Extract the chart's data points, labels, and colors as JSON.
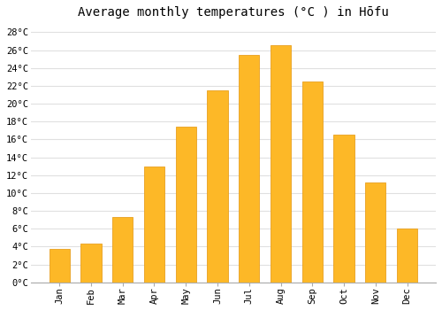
{
  "title": "Average monthly temperatures (°C ) in Hōfu",
  "months": [
    "Jan",
    "Feb",
    "Mar",
    "Apr",
    "May",
    "Jun",
    "Jul",
    "Aug",
    "Sep",
    "Oct",
    "Nov",
    "Dec"
  ],
  "temperatures": [
    3.7,
    4.3,
    7.3,
    13.0,
    17.4,
    21.5,
    25.5,
    26.5,
    22.5,
    16.5,
    11.2,
    6.0
  ],
  "bar_color_face": "#FDB827",
  "bar_color_edge": "#E8A020",
  "bar_width": 0.65,
  "ylim": [
    0,
    29
  ],
  "yticks": [
    0,
    2,
    4,
    6,
    8,
    10,
    12,
    14,
    16,
    18,
    20,
    22,
    24,
    26,
    28
  ],
  "background_color": "#ffffff",
  "plot_bg_color": "#ffffff",
  "grid_color": "#e0e0e0",
  "title_fontsize": 10,
  "tick_fontsize": 7.5,
  "font_family": "monospace"
}
